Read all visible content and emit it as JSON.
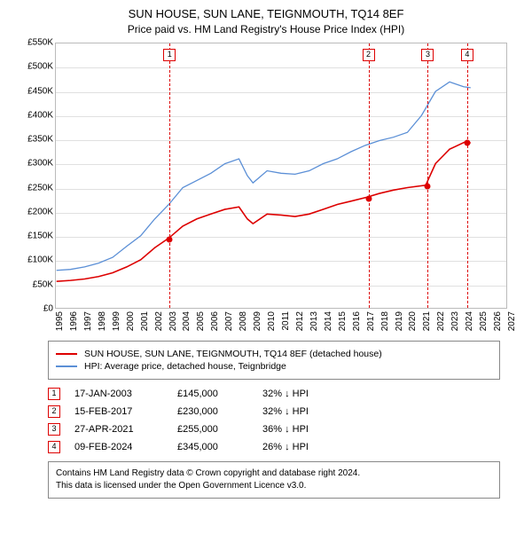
{
  "title": "SUN HOUSE, SUN LANE, TEIGNMOUTH, TQ14 8EF",
  "subtitle": "Price paid vs. HM Land Registry's House Price Index (HPI)",
  "chart": {
    "type": "line",
    "background_color": "#ffffff",
    "grid_color": "#e0e0e0",
    "border_color": "#bbbbbb",
    "x": {
      "min": 1995,
      "max": 2027,
      "ticks": [
        1995,
        1996,
        1997,
        1998,
        1999,
        2000,
        2001,
        2002,
        2003,
        2004,
        2005,
        2006,
        2007,
        2008,
        2009,
        2010,
        2011,
        2012,
        2013,
        2014,
        2015,
        2016,
        2017,
        2018,
        2019,
        2020,
        2021,
        2022,
        2023,
        2024,
        2025,
        2026,
        2027
      ]
    },
    "y": {
      "min": 0,
      "max": 550000,
      "tick_step": 50000,
      "prefix": "£",
      "ticks_labels": [
        "£0",
        "£50K",
        "£100K",
        "£150K",
        "£200K",
        "£250K",
        "£300K",
        "£350K",
        "£400K",
        "£450K",
        "£500K",
        "£550K"
      ]
    },
    "series": [
      {
        "name": "SUN HOUSE, SUN LANE, TEIGNMOUTH, TQ14 8EF (detached house)",
        "color": "#dd0000",
        "line_width": 1.6,
        "points": [
          [
            1995.0,
            55000
          ],
          [
            1996.0,
            57000
          ],
          [
            1997.0,
            60000
          ],
          [
            1998.0,
            65000
          ],
          [
            1999.0,
            73000
          ],
          [
            2000.0,
            85000
          ],
          [
            2001.0,
            100000
          ],
          [
            2002.0,
            125000
          ],
          [
            2003.0,
            145000
          ],
          [
            2004.0,
            170000
          ],
          [
            2005.0,
            185000
          ],
          [
            2006.0,
            195000
          ],
          [
            2007.0,
            205000
          ],
          [
            2008.0,
            210000
          ],
          [
            2008.6,
            185000
          ],
          [
            2009.0,
            175000
          ],
          [
            2010.0,
            195000
          ],
          [
            2011.0,
            193000
          ],
          [
            2012.0,
            190000
          ],
          [
            2013.0,
            195000
          ],
          [
            2014.0,
            205000
          ],
          [
            2015.0,
            215000
          ],
          [
            2016.0,
            222000
          ],
          [
            2017.1,
            230000
          ],
          [
            2018.0,
            238000
          ],
          [
            2019.0,
            245000
          ],
          [
            2020.0,
            250000
          ],
          [
            2021.3,
            255000
          ],
          [
            2022.0,
            300000
          ],
          [
            2023.0,
            330000
          ],
          [
            2024.1,
            345000
          ],
          [
            2024.5,
            343000
          ]
        ]
      },
      {
        "name": "HPI: Average price, detached house, Teignbridge",
        "color": "#5b8fd6",
        "line_width": 1.3,
        "points": [
          [
            1995.0,
            78000
          ],
          [
            1996.0,
            80000
          ],
          [
            1997.0,
            85000
          ],
          [
            1998.0,
            93000
          ],
          [
            1999.0,
            105000
          ],
          [
            2000.0,
            128000
          ],
          [
            2001.0,
            150000
          ],
          [
            2002.0,
            185000
          ],
          [
            2003.0,
            215000
          ],
          [
            2004.0,
            250000
          ],
          [
            2005.0,
            265000
          ],
          [
            2006.0,
            280000
          ],
          [
            2007.0,
            300000
          ],
          [
            2008.0,
            310000
          ],
          [
            2008.6,
            275000
          ],
          [
            2009.0,
            260000
          ],
          [
            2010.0,
            285000
          ],
          [
            2011.0,
            280000
          ],
          [
            2012.0,
            278000
          ],
          [
            2013.0,
            285000
          ],
          [
            2014.0,
            300000
          ],
          [
            2015.0,
            310000
          ],
          [
            2016.0,
            325000
          ],
          [
            2017.0,
            338000
          ],
          [
            2018.0,
            348000
          ],
          [
            2019.0,
            355000
          ],
          [
            2020.0,
            365000
          ],
          [
            2021.0,
            400000
          ],
          [
            2022.0,
            450000
          ],
          [
            2023.0,
            470000
          ],
          [
            2024.0,
            460000
          ],
          [
            2024.5,
            458000
          ]
        ]
      }
    ],
    "transactions": [
      {
        "n": "1",
        "year": 2003.05,
        "date": "17-JAN-2003",
        "price": "£145,000",
        "diff": "32% ↓ HPI",
        "y": 145000
      },
      {
        "n": "2",
        "year": 2017.12,
        "date": "15-FEB-2017",
        "price": "£230,000",
        "diff": "32% ↓ HPI",
        "y": 230000
      },
      {
        "n": "3",
        "year": 2021.32,
        "date": "27-APR-2021",
        "price": "£255,000",
        "diff": "36% ↓ HPI",
        "y": 255000
      },
      {
        "n": "4",
        "year": 2024.11,
        "date": "09-FEB-2024",
        "price": "£345,000",
        "diff": "26% ↓ HPI",
        "y": 345000
      }
    ],
    "marker_border_color": "#dd0000",
    "point_color": "#dd0000"
  },
  "legend": {
    "s1": "SUN HOUSE, SUN LANE, TEIGNMOUTH, TQ14 8EF (detached house)",
    "s2": "HPI: Average price, detached house, Teignbridge"
  },
  "footer": {
    "l1": "Contains HM Land Registry data © Crown copyright and database right 2024.",
    "l2": "This data is licensed under the Open Government Licence v3.0."
  }
}
